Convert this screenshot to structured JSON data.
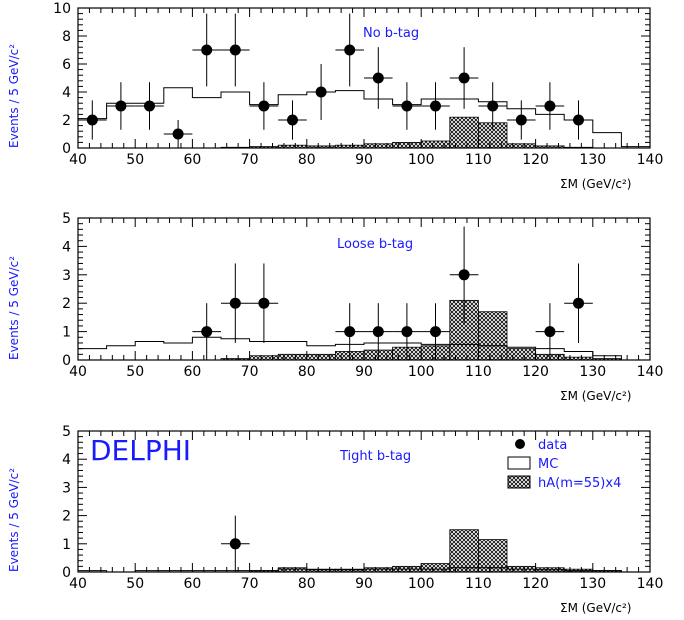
{
  "experiment_label": "DELPHI",
  "legend": {
    "data": "data",
    "mc": "MC",
    "signal": "hA(m=55)x4"
  },
  "colors": {
    "annotation": "#1a1aff",
    "ink": "#000000",
    "hatch_bg": "#ffffff"
  },
  "chart_data": [
    {
      "type": "bar",
      "title": "No b-tag",
      "xlabel": "ΣM (GeV/c²)",
      "ylabel": "Events / 5 GeV/c²",
      "xlim": [
        40,
        140
      ],
      "ylim": [
        0,
        10
      ],
      "xticks": [
        40,
        50,
        60,
        70,
        80,
        90,
        100,
        110,
        120,
        130,
        140
      ],
      "yticks": [
        0,
        2,
        4,
        6,
        8,
        10
      ],
      "bin_edges": [
        40,
        45,
        50,
        55,
        60,
        65,
        70,
        75,
        80,
        85,
        90,
        95,
        100,
        105,
        110,
        115,
        120,
        125,
        130,
        135,
        140
      ],
      "mc": [
        2.1,
        3.2,
        3.2,
        4.3,
        3.6,
        4.0,
        3.1,
        3.8,
        4.0,
        4.1,
        3.5,
        3.1,
        3.5,
        3.5,
        3.3,
        2.8,
        2.4,
        2.0,
        1.1,
        0.1
      ],
      "signal": [
        0,
        0,
        0,
        0,
        0,
        0.05,
        0.1,
        0.2,
        0.15,
        0.2,
        0.3,
        0.4,
        0.5,
        2.2,
        1.8,
        0.3,
        0.15,
        0.05,
        0,
        0
      ],
      "data": [
        {
          "x": 42.5,
          "y": 2,
          "err": 1.4
        },
        {
          "x": 47.5,
          "y": 3,
          "err": 1.7
        },
        {
          "x": 52.5,
          "y": 3,
          "err": 1.7
        },
        {
          "x": 57.5,
          "y": 1,
          "err": 1.0
        },
        {
          "x": 62.5,
          "y": 7,
          "err": 2.6
        },
        {
          "x": 67.5,
          "y": 7,
          "err": 2.6
        },
        {
          "x": 72.5,
          "y": 3,
          "err": 1.7
        },
        {
          "x": 77.5,
          "y": 2,
          "err": 1.4
        },
        {
          "x": 82.5,
          "y": 4,
          "err": 2.0
        },
        {
          "x": 87.5,
          "y": 7,
          "err": 2.6
        },
        {
          "x": 92.5,
          "y": 5,
          "err": 2.2
        },
        {
          "x": 97.5,
          "y": 3,
          "err": 1.7
        },
        {
          "x": 102.5,
          "y": 3,
          "err": 1.7
        },
        {
          "x": 107.5,
          "y": 5,
          "err": 2.2
        },
        {
          "x": 112.5,
          "y": 3,
          "err": 1.7
        },
        {
          "x": 117.5,
          "y": 2,
          "err": 1.4
        },
        {
          "x": 122.5,
          "y": 3,
          "err": 1.7
        },
        {
          "x": 127.5,
          "y": 2,
          "err": 1.4
        }
      ]
    },
    {
      "type": "bar",
      "title": "Loose b-tag",
      "xlabel": "ΣM (GeV/c²)",
      "ylabel": "Events / 5 GeV/c²",
      "xlim": [
        40,
        140
      ],
      "ylim": [
        0,
        5
      ],
      "xticks": [
        40,
        50,
        60,
        70,
        80,
        90,
        100,
        110,
        120,
        130,
        140
      ],
      "yticks": [
        0,
        1,
        2,
        3,
        4,
        5
      ],
      "bin_edges": [
        40,
        45,
        50,
        55,
        60,
        65,
        70,
        75,
        80,
        85,
        90,
        95,
        100,
        105,
        110,
        115,
        120,
        125,
        130,
        135,
        140
      ],
      "mc": [
        0.4,
        0.5,
        0.65,
        0.6,
        0.8,
        0.75,
        0.65,
        0.65,
        0.5,
        0.55,
        0.6,
        0.6,
        0.55,
        0.55,
        0.5,
        0.45,
        0.4,
        0.3,
        0.15,
        0
      ],
      "signal": [
        0,
        0,
        0,
        0,
        0,
        0.05,
        0.15,
        0.2,
        0.2,
        0.3,
        0.35,
        0.45,
        0.5,
        2.1,
        1.7,
        0.4,
        0.2,
        0.1,
        0.05,
        0
      ],
      "data": [
        {
          "x": 62.5,
          "y": 1,
          "err": 1.0
        },
        {
          "x": 67.5,
          "y": 2,
          "err": 1.4
        },
        {
          "x": 72.5,
          "y": 2,
          "err": 1.4
        },
        {
          "x": 87.5,
          "y": 1,
          "err": 1.0
        },
        {
          "x": 92.5,
          "y": 1,
          "err": 1.0
        },
        {
          "x": 97.5,
          "y": 1,
          "err": 1.0
        },
        {
          "x": 102.5,
          "y": 1,
          "err": 1.0
        },
        {
          "x": 107.5,
          "y": 3,
          "err": 1.7
        },
        {
          "x": 122.5,
          "y": 1,
          "err": 1.0
        },
        {
          "x": 127.5,
          "y": 2,
          "err": 1.4
        }
      ]
    },
    {
      "type": "bar",
      "title": "Tight b-tag",
      "xlabel": "ΣM (GeV/c²)",
      "ylabel": "Events / 5 GeV/c²",
      "xlim": [
        40,
        140
      ],
      "ylim": [
        0,
        5
      ],
      "xticks": [
        40,
        50,
        60,
        70,
        80,
        90,
        100,
        110,
        120,
        130,
        140
      ],
      "yticks": [
        0,
        1,
        2,
        3,
        4,
        5
      ],
      "bin_edges": [
        40,
        45,
        50,
        55,
        60,
        65,
        70,
        75,
        80,
        85,
        90,
        95,
        100,
        105,
        110,
        115,
        120,
        125,
        130,
        135,
        140
      ],
      "mc": [
        0.05,
        0,
        0.05,
        0.05,
        0.05,
        0.05,
        0.05,
        0.1,
        0.08,
        0.08,
        0.1,
        0.1,
        0.1,
        0.15,
        0.15,
        0.1,
        0.08,
        0.05,
        0.05,
        0
      ],
      "signal": [
        0,
        0,
        0,
        0,
        0,
        0,
        0.05,
        0.15,
        0.1,
        0.1,
        0.15,
        0.2,
        0.3,
        1.5,
        1.15,
        0.2,
        0.15,
        0.1,
        0.05,
        0
      ],
      "data": [
        {
          "x": 67.5,
          "y": 1,
          "err": 1.0
        }
      ]
    }
  ]
}
